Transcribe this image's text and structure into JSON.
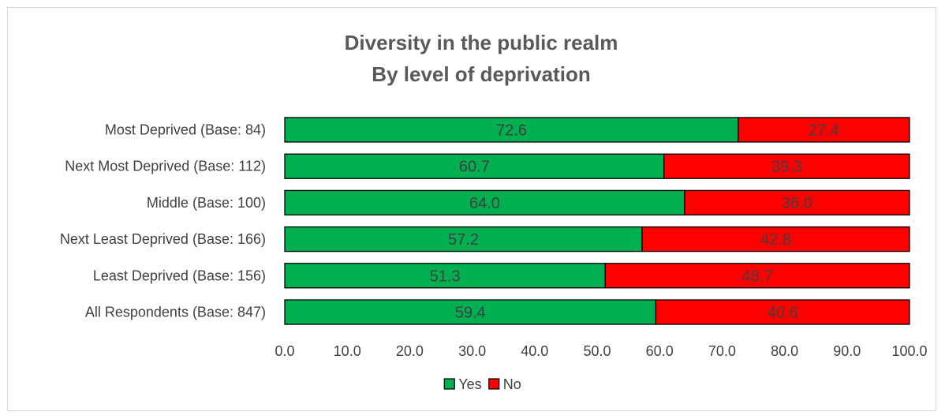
{
  "chart_data": {
    "type": "bar",
    "orientation": "horizontal",
    "stacked": true,
    "title": [
      "Diversity in the public realm",
      "By level of deprivation"
    ],
    "categories": [
      "Most Deprived (Base: 84)",
      "Next Most Deprived (Base: 112)",
      "Middle (Base: 100)",
      "Next Least Deprived (Base: 166)",
      "Least Deprived (Base: 156)",
      "All Respondents (Base: 847)"
    ],
    "series": [
      {
        "name": "Yes",
        "color": "#00b050",
        "values": [
          72.6,
          60.7,
          64.0,
          57.2,
          51.3,
          59.4
        ]
      },
      {
        "name": "No",
        "color": "#ff0000",
        "values": [
          27.4,
          39.3,
          36.0,
          42.8,
          48.7,
          40.6
        ]
      }
    ],
    "xlim": [
      0,
      100
    ],
    "xticks": [
      "0.0",
      "10.0",
      "20.0",
      "30.0",
      "40.0",
      "50.0",
      "60.0",
      "70.0",
      "80.0",
      "90.0",
      "100.0"
    ],
    "legend_position": "bottom",
    "grid": false
  }
}
